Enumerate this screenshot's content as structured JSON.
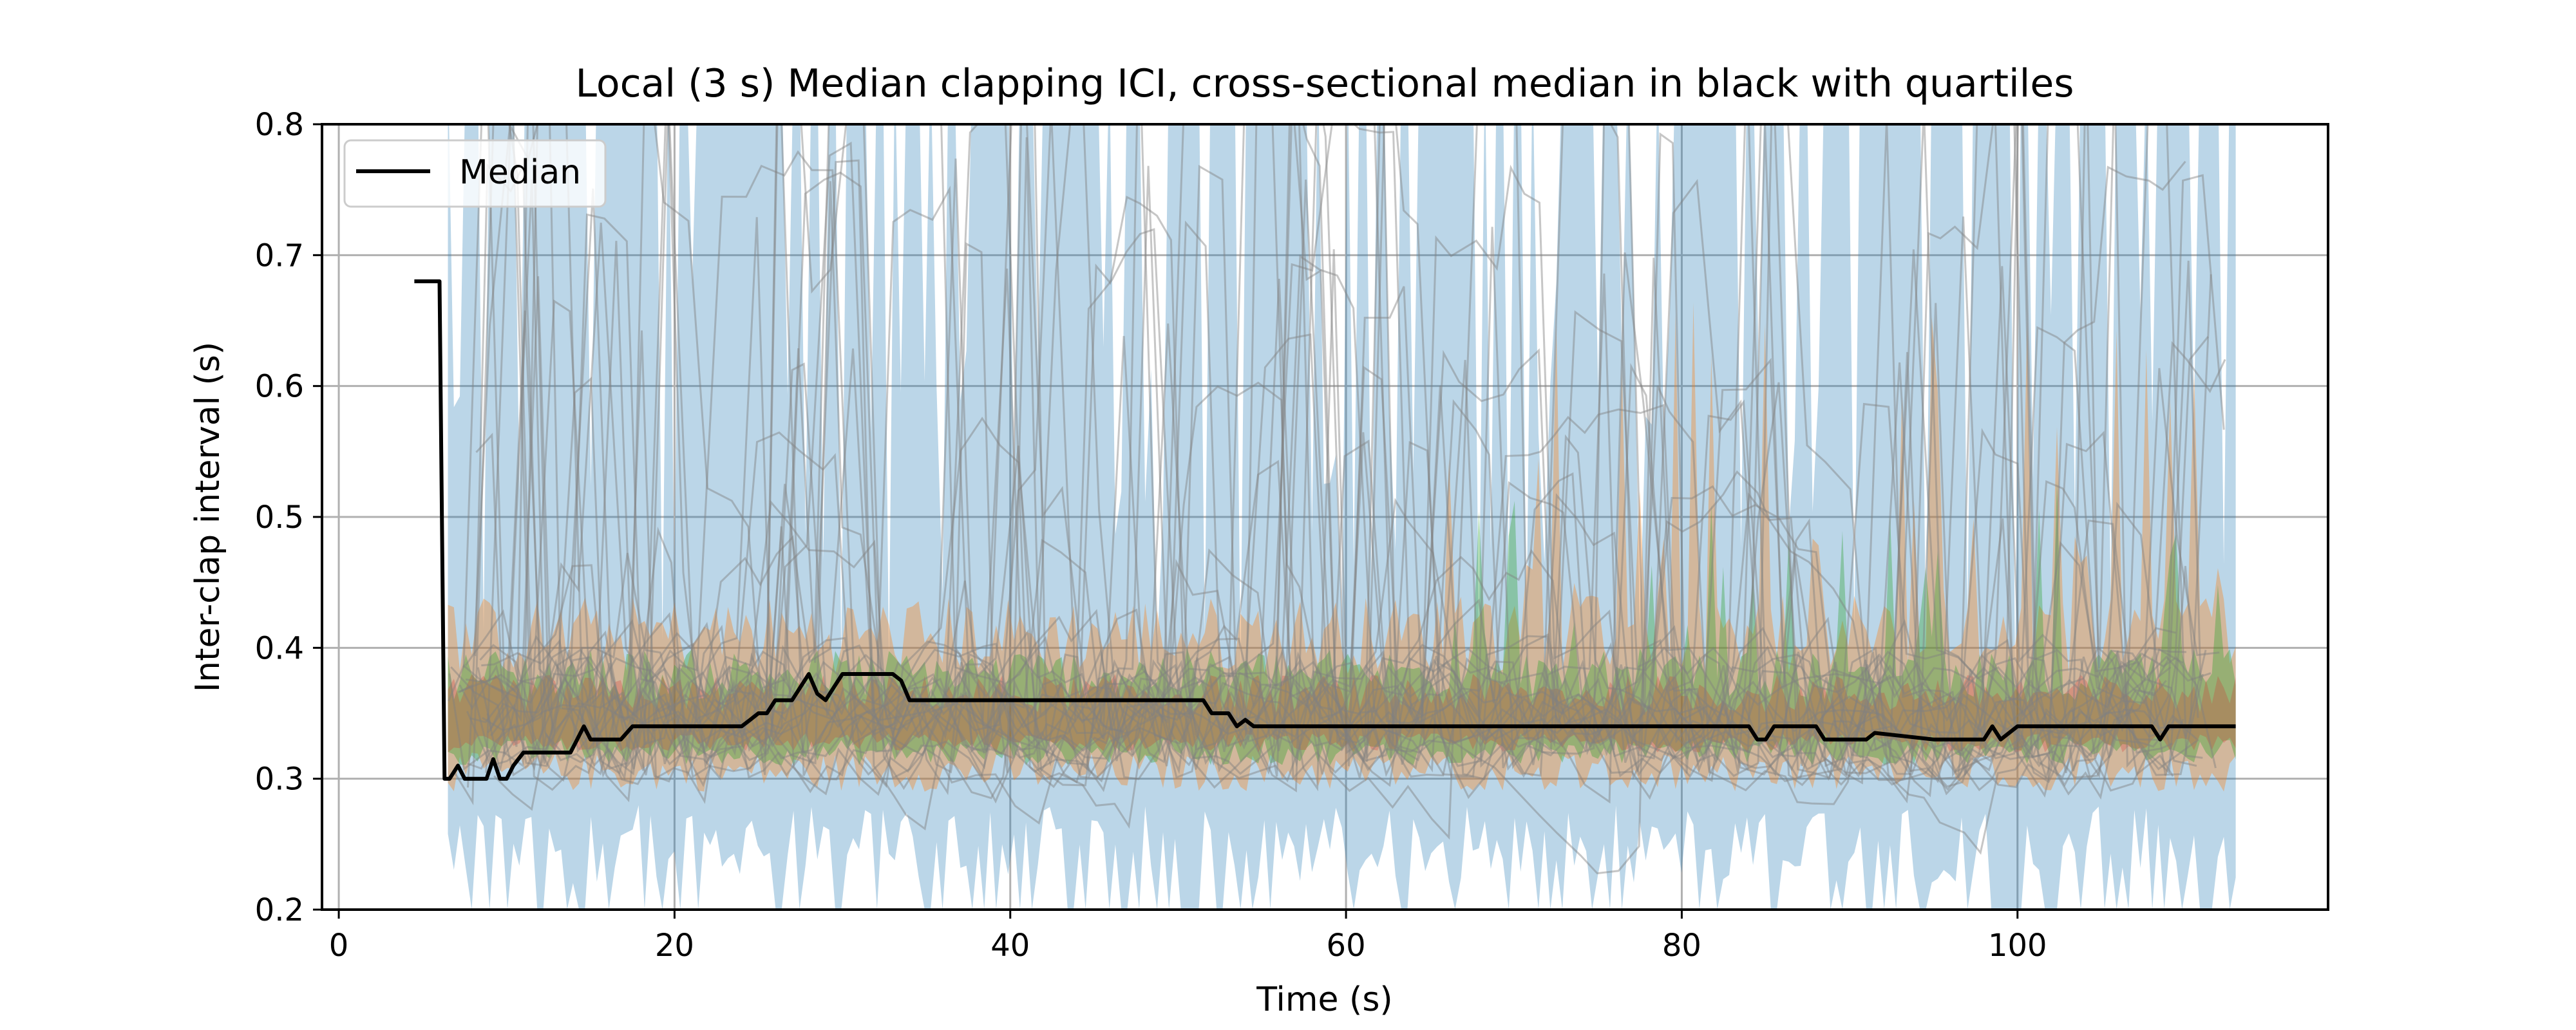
{
  "chart_data": {
    "type": "line",
    "title": "Local (3 s) Median clapping ICI, cross-sectional median in black with quartiles",
    "xlabel": "Time (s)",
    "ylabel": "Inter-clap interval (s)",
    "xlim": [
      -1,
      118.5
    ],
    "ylim": [
      0.2,
      0.8
    ],
    "xticks": [
      0,
      20,
      40,
      60,
      80,
      100
    ],
    "yticks": [
      0.2,
      0.3,
      0.4,
      0.5,
      0.6,
      0.7,
      0.8
    ],
    "grid": true,
    "legend": {
      "placement": "top-left",
      "entries": [
        "Median"
      ]
    },
    "colors": {
      "median": "#000000",
      "individual_lines": "#808080",
      "band_outer": "#1f77b4",
      "band_mid": "#ff7f0e",
      "band_inner": "#2ca02c",
      "band_core": "#d62728",
      "grid": "#b0b0b0"
    },
    "series": [
      {
        "name": "Median",
        "x": [
          4.5,
          6,
          6.3,
          6.6,
          7.1,
          7.5,
          8,
          8.4,
          8.8,
          9.2,
          9.6,
          10,
          10.4,
          11,
          11.6,
          12,
          12.6,
          13.2,
          13.8,
          14.2,
          14.6,
          15,
          15.5,
          16,
          16.8,
          17.5,
          18,
          19,
          20,
          21,
          22,
          23,
          24,
          24.5,
          25,
          25.5,
          26,
          26.5,
          27,
          27.5,
          28,
          28.5,
          29,
          29.5,
          30,
          31,
          32,
          33,
          33.5,
          34,
          35,
          38,
          42,
          46,
          50,
          51.5,
          52,
          52.5,
          53,
          53.5,
          54,
          54.5,
          55,
          56,
          60,
          65,
          70,
          75,
          80,
          84,
          84.5,
          85,
          85.5,
          88,
          88.5,
          90,
          91,
          91.5,
          95,
          97,
          97.5,
          98,
          98.5,
          99,
          100,
          104,
          107.5,
          108,
          108.5,
          109,
          110,
          112,
          113
        ],
        "values": [
          0.68,
          0.68,
          0.3,
          0.3,
          0.31,
          0.3,
          0.3,
          0.3,
          0.3,
          0.315,
          0.3,
          0.3,
          0.31,
          0.32,
          0.32,
          0.32,
          0.32,
          0.32,
          0.32,
          0.33,
          0.34,
          0.33,
          0.33,
          0.33,
          0.33,
          0.34,
          0.34,
          0.34,
          0.34,
          0.34,
          0.34,
          0.34,
          0.34,
          0.345,
          0.35,
          0.35,
          0.36,
          0.36,
          0.36,
          0.37,
          0.38,
          0.365,
          0.36,
          0.37,
          0.38,
          0.38,
          0.38,
          0.38,
          0.375,
          0.36,
          0.36,
          0.36,
          0.36,
          0.36,
          0.36,
          0.36,
          0.35,
          0.35,
          0.35,
          0.34,
          0.345,
          0.34,
          0.34,
          0.34,
          0.34,
          0.34,
          0.34,
          0.34,
          0.34,
          0.34,
          0.33,
          0.33,
          0.34,
          0.34,
          0.33,
          0.33,
          0.33,
          0.335,
          0.33,
          0.33,
          0.33,
          0.33,
          0.34,
          0.33,
          0.34,
          0.34,
          0.34,
          0.34,
          0.33,
          0.34,
          0.34,
          0.34,
          0.34
        ]
      }
    ],
    "background_layers": {
      "x_range": [
        6.5,
        113
      ],
      "bands": [
        {
          "color": "band_outer",
          "opacity": 0.3,
          "base_low": 0.24,
          "base_high": 0.8
        },
        {
          "color": "band_mid",
          "opacity": 0.35,
          "base_low": 0.3,
          "base_high": 0.45
        },
        {
          "color": "band_inner",
          "opacity": 0.35,
          "base_low": 0.32,
          "base_high": 0.39
        },
        {
          "color": "band_core",
          "opacity": 0.25,
          "base_low": 0.33,
          "base_high": 0.37
        }
      ],
      "individual_line_count": 26
    }
  }
}
